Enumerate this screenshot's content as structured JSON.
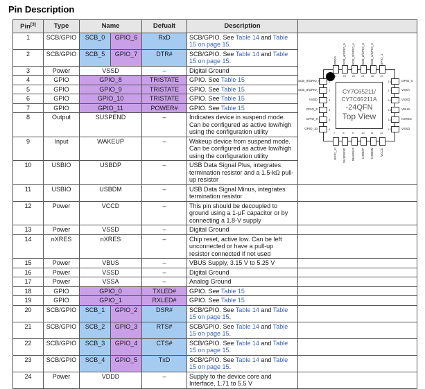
{
  "page_title": "Pin Description",
  "colors": {
    "highlight_blue": "#A6CBF0",
    "highlight_purple": "#C9A0E8",
    "header_bg": "#E6E6E6",
    "link_blue": "#3A62B8",
    "border": "#555555"
  },
  "table": {
    "headers": {
      "pin": "Pin",
      "pin_footnote": "[3]",
      "type": "Type",
      "name": "Name",
      "default": "Defualt",
      "description": "Description"
    },
    "rows": [
      {
        "pin": "1",
        "type": "SCB/GPIO",
        "name": [
          {
            "t": "SCB_0",
            "bg": "blue"
          },
          {
            "t": "GPIO_6",
            "bg": "purple"
          }
        ],
        "def": {
          "t": "RxD",
          "bg": "blue"
        },
        "desc": [
          {
            "t": "SCB/GPIO. See "
          },
          {
            "t": "Table 14",
            "link": true
          },
          {
            "t": " and "
          },
          {
            "t": "Table 15 on page 15",
            "link": true
          },
          {
            "t": "."
          }
        ]
      },
      {
        "pin": "2",
        "type": "SCB/GPIO",
        "name": [
          {
            "t": "SCB_5",
            "bg": "blue"
          },
          {
            "t": "GPIO_7",
            "bg": "purple"
          }
        ],
        "def": {
          "t": "DTR#",
          "bg": "blue"
        },
        "desc": [
          {
            "t": "SCB/GPIO. See "
          },
          {
            "t": "Table 14",
            "link": true
          },
          {
            "t": " and "
          },
          {
            "t": "Table 15 on page 15",
            "link": true
          },
          {
            "t": "."
          }
        ]
      },
      {
        "pin": "3",
        "type": "Power",
        "name": [
          {
            "t": "VSSD"
          }
        ],
        "def": {
          "t": "–"
        },
        "desc": [
          {
            "t": "Digital Ground"
          }
        ]
      },
      {
        "pin": "4",
        "type": "GPIO",
        "name": [
          {
            "t": "GPIO_8",
            "bg": "purple"
          }
        ],
        "def": {
          "t": "TRISTATE",
          "bg": "purple"
        },
        "desc": [
          {
            "t": "GPIO. See "
          },
          {
            "t": "Table 15",
            "link": true
          }
        ]
      },
      {
        "pin": "5",
        "type": "GPIO",
        "name": [
          {
            "t": "GPIO_9",
            "bg": "purple"
          }
        ],
        "def": {
          "t": "TRISTATE",
          "bg": "purple"
        },
        "desc": [
          {
            "t": "GPIO. See "
          },
          {
            "t": "Table 15",
            "link": true
          }
        ]
      },
      {
        "pin": "6",
        "type": "GPIO",
        "name": [
          {
            "t": "GPIO_10",
            "bg": "purple"
          }
        ],
        "def": {
          "t": "TRISTATE",
          "bg": "purple"
        },
        "desc": [
          {
            "t": "GPIO. See "
          },
          {
            "t": "Table 15",
            "link": true
          }
        ]
      },
      {
        "pin": "7",
        "type": "GPIO",
        "name": [
          {
            "t": "GPIO_11",
            "bg": "purple"
          }
        ],
        "def": {
          "t": "POWER#",
          "bg": "purple"
        },
        "desc": [
          {
            "t": "GPIO. See "
          },
          {
            "t": "Table 15",
            "link": true
          }
        ]
      },
      {
        "pin": "8",
        "type": "Output",
        "name": [
          {
            "t": "SUSPEND"
          }
        ],
        "def": {
          "t": "–"
        },
        "desc": [
          {
            "t": "Indicates device in suspend mode. Can be configured as active low/high using the configuration utility"
          }
        ]
      },
      {
        "pin": "9",
        "type": "Input",
        "name": [
          {
            "t": "WAKEUP"
          }
        ],
        "def": {
          "t": "–"
        },
        "desc": [
          {
            "t": "Wakeup device from suspend mode. Can be configured as active low/high using the configuration utility"
          }
        ]
      },
      {
        "pin": "10",
        "type": "USBIO",
        "name": [
          {
            "t": "USBDP"
          }
        ],
        "def": {
          "t": "–"
        },
        "desc": [
          {
            "t": "USB Data Signal Plus, integrates termination resistor and a 1.5-kΩ pull-up resistor"
          }
        ]
      },
      {
        "pin": "11",
        "type": "USBIO",
        "name": [
          {
            "t": "USBDM"
          }
        ],
        "def": {
          "t": "–"
        },
        "desc": [
          {
            "t": "USB Data Signal Minus, integrates termination resistor"
          }
        ]
      },
      {
        "pin": "12",
        "type": "Power",
        "name": [
          {
            "t": "VCCD"
          }
        ],
        "def": {
          "t": "–"
        },
        "desc": [
          {
            "t": "This pin should be decoupled to ground using a 1-µF capacitor or by connecting a 1.8-V supply"
          }
        ]
      },
      {
        "pin": "13",
        "type": "Power",
        "name": [
          {
            "t": "VSSD"
          }
        ],
        "def": {
          "t": "–"
        },
        "desc": [
          {
            "t": "Digital Ground"
          }
        ]
      },
      {
        "pin": "14",
        "type": "nXRES",
        "name": [
          {
            "t": "nXRES"
          }
        ],
        "def": {
          "t": "–"
        },
        "desc": [
          {
            "t": "Chip reset, active low. Can be left unconnected or have a pull-up resistor connected if not used"
          }
        ]
      },
      {
        "pin": "15",
        "type": "Power",
        "name": [
          {
            "t": "VBUS"
          }
        ],
        "def": {
          "t": "–"
        },
        "desc": [
          {
            "t": "VBUS Supply, 3.15 V to 5.25 V"
          }
        ]
      },
      {
        "pin": "16",
        "type": "Power",
        "name": [
          {
            "t": "VSSD"
          }
        ],
        "def": {
          "t": "–"
        },
        "desc": [
          {
            "t": "Digital Ground"
          }
        ]
      },
      {
        "pin": "17",
        "type": "Power",
        "name": [
          {
            "t": "VSSA"
          }
        ],
        "def": {
          "t": "–"
        },
        "desc": [
          {
            "t": "Analog Ground"
          }
        ]
      },
      {
        "pin": "18",
        "type": "GPIO",
        "name": [
          {
            "t": "GPIO_0",
            "bg": "purple"
          }
        ],
        "def": {
          "t": "TXLED#",
          "bg": "purple"
        },
        "desc": [
          {
            "t": "GPIO. See "
          },
          {
            "t": "Table 15",
            "link": true
          }
        ]
      },
      {
        "pin": "19",
        "type": "GPIO",
        "name": [
          {
            "t": "GPIO_1",
            "bg": "purple"
          }
        ],
        "def": {
          "t": "RXLED#",
          "bg": "purple"
        },
        "desc": [
          {
            "t": "GPIO. See "
          },
          {
            "t": "Table 15",
            "link": true
          }
        ]
      },
      {
        "pin": "20",
        "type": "SCB/GPIO",
        "name": [
          {
            "t": "SCB_1",
            "bg": "blue"
          },
          {
            "t": "GPIO_2",
            "bg": "purple"
          }
        ],
        "def": {
          "t": "DSR#",
          "bg": "blue"
        },
        "desc": [
          {
            "t": "SCB/GPIO. See "
          },
          {
            "t": "Table 14",
            "link": true
          },
          {
            "t": " and "
          },
          {
            "t": "Table 15 on page 15",
            "link": true
          },
          {
            "t": "."
          }
        ]
      },
      {
        "pin": "21",
        "type": "SCB/GPIO",
        "name": [
          {
            "t": "SCB_2",
            "bg": "blue"
          },
          {
            "t": "GPIO_3",
            "bg": "purple"
          }
        ],
        "def": {
          "t": "RTS#",
          "bg": "blue"
        },
        "desc": [
          {
            "t": "SCB/GPIO. See "
          },
          {
            "t": "Table 14",
            "link": true
          },
          {
            "t": " and "
          },
          {
            "t": "Table 15 on page 15",
            "link": true
          },
          {
            "t": "."
          }
        ]
      },
      {
        "pin": "22",
        "type": "SCB/GPIO",
        "name": [
          {
            "t": "SCB_3",
            "bg": "blue"
          },
          {
            "t": "GPIO_4",
            "bg": "purple"
          }
        ],
        "def": {
          "t": "CTS#",
          "bg": "blue"
        },
        "desc": [
          {
            "t": "SCB/GPIO. See "
          },
          {
            "t": "Table 14",
            "link": true
          },
          {
            "t": " and "
          },
          {
            "t": "Table 15 on page 15",
            "link": true
          },
          {
            "t": "."
          }
        ]
      },
      {
        "pin": "23",
        "type": "SCB/GPIO",
        "name": [
          {
            "t": "SCB_4",
            "bg": "blue"
          },
          {
            "t": "GPIO_5",
            "bg": "purple"
          }
        ],
        "def": {
          "t": "TxD",
          "bg": "blue"
        },
        "desc": [
          {
            "t": "SCB/GPIO. See "
          },
          {
            "t": "Table 14",
            "link": true
          },
          {
            "t": " and "
          },
          {
            "t": "Table 15 on page 15",
            "link": true
          },
          {
            "t": "."
          }
        ]
      },
      {
        "pin": "24",
        "type": "Power",
        "name": [
          {
            "t": "VDDD"
          }
        ],
        "def": {
          "t": "–"
        },
        "desc": [
          {
            "t": "Supply to the device core and Interface, 1.71 to 5.5 V"
          }
        ]
      }
    ]
  },
  "diagram": {
    "title_lines": [
      "CY7C65211/",
      "CY7C65211A",
      "-24QFN",
      "Top View"
    ],
    "top": [
      {
        "num": "24",
        "label": "VDDD"
      },
      {
        "num": "23",
        "label": "SCB_4/GPIO_5"
      },
      {
        "num": "22",
        "label": "SCB_3/GPIO_4"
      },
      {
        "num": "21",
        "label": "SCB_2/GPIO_3"
      },
      {
        "num": "20",
        "label": "SCB_1/GPIO_2"
      },
      {
        "num": "19",
        "label": "GPIO_1"
      }
    ],
    "left": [
      {
        "num": "1",
        "label": "SCB_0/GPIO_6"
      },
      {
        "num": "2",
        "label": "SCB_5/GPIO_7"
      },
      {
        "num": "3",
        "label": "VSSD"
      },
      {
        "num": "4",
        "label": "GPIO_8"
      },
      {
        "num": "5",
        "label": "GPIO_9"
      },
      {
        "num": "6",
        "label": "GPIO_10"
      }
    ],
    "right": [
      {
        "num": "18",
        "label": "GPIO_0"
      },
      {
        "num": "17",
        "label": "VSSA"
      },
      {
        "num": "16",
        "label": "VSSD"
      },
      {
        "num": "15",
        "label": "VBUS"
      },
      {
        "num": "14",
        "label": "nXRES"
      },
      {
        "num": "13",
        "label": "VSSD"
      }
    ],
    "bottom": [
      {
        "num": "7",
        "label": "GPIO_11"
      },
      {
        "num": "8",
        "label": "SUSPEND"
      },
      {
        "num": "9",
        "label": "WAKEUP"
      },
      {
        "num": "10",
        "label": "USBDP"
      },
      {
        "num": "11",
        "label": "USBDM"
      },
      {
        "num": "12",
        "label": "VCCD"
      }
    ]
  }
}
